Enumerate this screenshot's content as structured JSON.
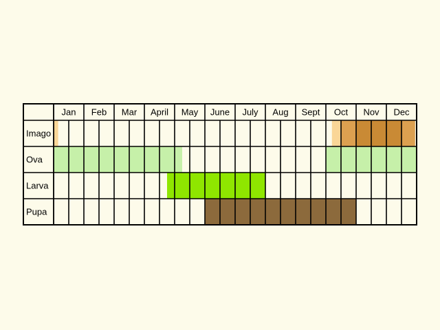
{
  "chart_data": {
    "type": "table",
    "months": [
      "Jan",
      "Feb",
      "Mar",
      "April",
      "May",
      "June",
      "July",
      "Aug",
      "Sept",
      "Oct",
      "Nov",
      "Dec"
    ],
    "subdivisions_per_month": 2,
    "stages": [
      {
        "name": "Imago",
        "key": "imago",
        "color": "#f8c97b",
        "periods": [
          {
            "start_month": 1,
            "end_month": 1.15,
            "intensity": "light"
          },
          {
            "start_month": 10.2,
            "end_month": 10.5,
            "intensity": "light"
          },
          {
            "start_month": 10.5,
            "end_month": 12.95,
            "intensity": "medium"
          },
          {
            "start_month": 11,
            "end_month": 12.5,
            "intensity": "dark"
          }
        ]
      },
      {
        "name": "Ova",
        "key": "ova",
        "color": "#c6f0a9",
        "periods": [
          {
            "start_month": 1,
            "end_month": 5.25,
            "intensity": "full"
          },
          {
            "start_month": 10,
            "end_month": 13,
            "intensity": "full"
          }
        ]
      },
      {
        "name": "Larva",
        "key": "larva",
        "color": "#8fe600",
        "periods": [
          {
            "start_month": 4.75,
            "end_month": 8,
            "intensity": "full"
          }
        ]
      },
      {
        "name": "Pupa",
        "key": "pupa",
        "color": "#8c6a3c",
        "periods": [
          {
            "start_month": 6,
            "end_month": 11,
            "intensity": "full"
          }
        ]
      }
    ]
  }
}
